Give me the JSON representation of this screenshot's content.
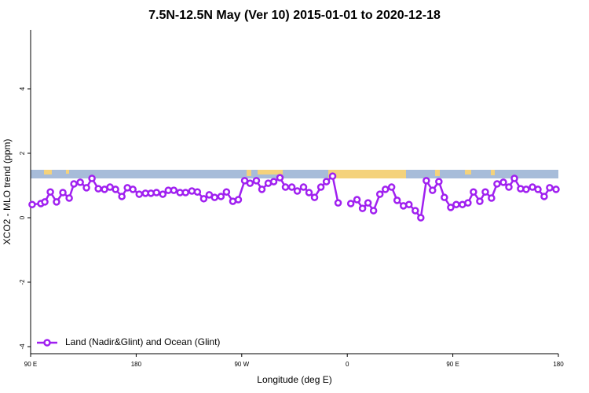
{
  "chart_data": {
    "type": "line",
    "title": "7.5N-12.5N May (Ver 10)   2015-01-01 to 2020-12-18",
    "x_label": "Longitude (deg E)",
    "y_label": "XCO2 - MLO trend (ppm)",
    "xlim": [
      90,
      540
    ],
    "ylim": [
      -4.22,
      5.83
    ],
    "xticks": [
      {
        "value": 90,
        "label": "90 E"
      },
      180,
      {
        "value": 270,
        "label": "90 W"
      },
      {
        "value": 360,
        "label": "0"
      },
      {
        "value": 450,
        "label": "90 E"
      },
      {
        "value": 540,
        "label": "180"
      }
    ],
    "yticks": [
      -4,
      -2,
      0,
      2,
      4
    ],
    "grid": false,
    "legend": "bottom-left",
    "x": [
      91.3,
      98.7,
      102.1,
      106.8,
      112.1,
      117.5,
      122.9,
      126.9,
      132.3,
      137.6,
      142.3,
      147.7,
      153.0,
      157.7,
      162.4,
      167.8,
      172.5,
      177.2,
      182.6,
      187.9,
      192.6,
      197.3,
      202.7,
      207.4,
      212.1,
      217.4,
      222.1,
      227.5,
      232.2,
      237.6,
      242.3,
      246.9,
      252.3,
      257.0,
      262.4,
      267.1,
      272.5,
      277.1,
      282.5,
      287.2,
      292.6,
      297.3,
      302.6,
      307.3,
      312.7,
      317.4,
      322.7,
      327.4,
      332.1,
      337.5,
      342.2,
      347.5,
      352.2,
      357.6,
      363.0,
      368.3,
      373.0,
      377.7,
      382.4,
      387.8,
      392.5,
      397.8,
      402.5,
      407.9,
      412.6,
      418.0,
      422.7,
      427.4,
      432.7,
      438.1,
      442.8,
      448.2,
      452.9,
      458.2,
      462.9,
      467.6,
      473.0,
      477.7,
      483.0,
      487.7,
      493.1,
      497.8,
      502.5,
      507.8,
      512.5,
      517.9,
      522.6,
      527.9,
      532.6,
      538.0
    ],
    "series": [
      {
        "name": "Land (Nadir&Glint) and Ocean (Glint)",
        "color": "#a020f0",
        "values": [
          0.41,
          0.44,
          0.49,
          0.8,
          0.49,
          0.78,
          0.61,
          1.05,
          1.1,
          0.93,
          1.22,
          0.9,
          0.88,
          0.95,
          0.88,
          0.66,
          0.93,
          0.88,
          0.73,
          0.76,
          0.76,
          0.78,
          0.73,
          0.85,
          0.85,
          0.78,
          0.78,
          0.83,
          0.8,
          0.59,
          0.71,
          0.63,
          0.66,
          0.8,
          0.51,
          0.56,
          1.15,
          1.07,
          1.15,
          0.88,
          1.07,
          1.12,
          1.24,
          0.95,
          0.95,
          0.83,
          0.95,
          0.78,
          0.63,
          0.95,
          1.12,
          1.29,
          0.46,
          null,
          0.44,
          0.56,
          0.29,
          0.46,
          0.22,
          0.73,
          0.88,
          0.95,
          0.54,
          0.37,
          0.41,
          0.22,
          0.0,
          1.15,
          0.85,
          1.12,
          0.63,
          0.32,
          0.41,
          0.41,
          0.46,
          0.8,
          0.51,
          0.8,
          0.61,
          1.05,
          1.1,
          0.95,
          1.22,
          0.9,
          0.88,
          0.95,
          0.88,
          0.66,
          0.93,
          0.88
        ]
      }
    ]
  }
}
